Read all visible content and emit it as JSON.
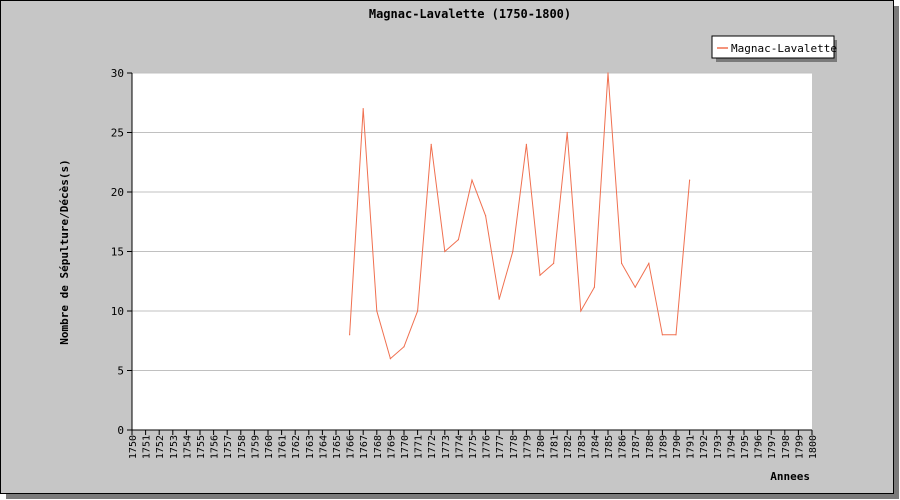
{
  "chart_data": {
    "type": "line",
    "title": "Magnac-Lavalette (1750-1800)",
    "xlabel": "Annees",
    "ylabel": "Nombre de Sépulture/Décès(s)",
    "xlim": [
      1750,
      1800
    ],
    "ylim": [
      0,
      30
    ],
    "yticks": [
      0,
      5,
      10,
      15,
      20,
      25,
      30
    ],
    "grid": true,
    "legend_position": "top-right",
    "series": [
      {
        "name": "Magnac-Lavalette",
        "color": "#f07050",
        "points": [
          [
            1766,
            8
          ],
          [
            1767,
            27
          ],
          [
            1768,
            10
          ],
          [
            1769,
            6
          ],
          [
            1770,
            7
          ],
          [
            1771,
            10
          ],
          [
            1772,
            24
          ],
          [
            1773,
            15
          ],
          [
            1774,
            16
          ],
          [
            1775,
            21
          ],
          [
            1776,
            18
          ],
          [
            1777,
            11
          ],
          [
            1778,
            15
          ],
          [
            1779,
            24
          ],
          [
            1780,
            13
          ],
          [
            1781,
            14
          ],
          [
            1782,
            25
          ],
          [
            1783,
            10
          ],
          [
            1784,
            12
          ],
          [
            1785,
            30
          ],
          [
            1786,
            14
          ],
          [
            1787,
            12
          ],
          [
            1788,
            14
          ],
          [
            1789,
            8
          ],
          [
            1790,
            8
          ],
          [
            1791,
            21
          ]
        ]
      }
    ]
  }
}
